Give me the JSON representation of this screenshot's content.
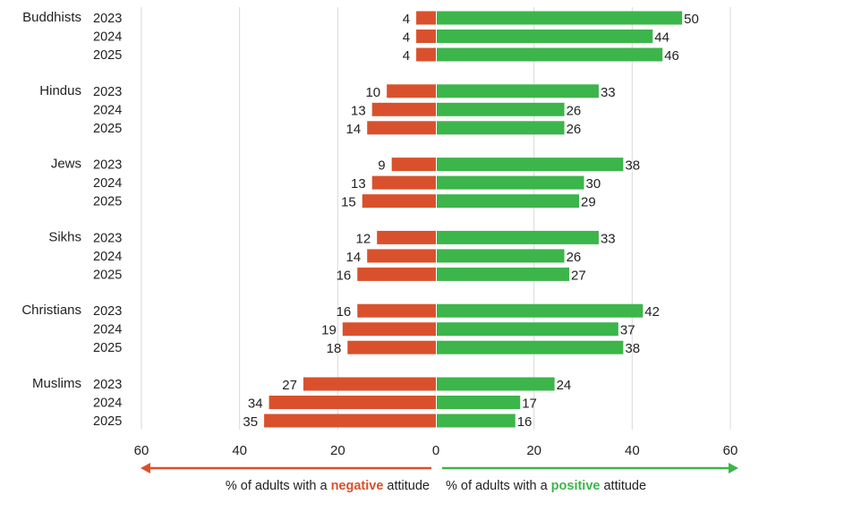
{
  "chart_data": {
    "type": "bar",
    "orientation": "horizontal-diverging",
    "groups": [
      "Buddhists",
      "Hindus",
      "Jews",
      "Sikhs",
      "Christians",
      "Muslims"
    ],
    "years": [
      "2023",
      "2024",
      "2025"
    ],
    "series": [
      {
        "name": "negative",
        "color": "#d9512c",
        "values": [
          [
            4,
            4,
            4
          ],
          [
            10,
            13,
            14
          ],
          [
            9,
            13,
            15
          ],
          [
            12,
            14,
            16
          ],
          [
            16,
            19,
            18
          ],
          [
            27,
            34,
            35
          ]
        ]
      },
      {
        "name": "positive",
        "color": "#3cb54a",
        "values": [
          [
            50,
            44,
            46
          ],
          [
            33,
            26,
            26
          ],
          [
            38,
            30,
            29
          ],
          [
            33,
            26,
            27
          ],
          [
            42,
            37,
            38
          ],
          [
            24,
            17,
            16
          ]
        ]
      }
    ],
    "xlim": [
      -60,
      60
    ],
    "xticks": [
      "60",
      "40",
      "20",
      "0",
      "20",
      "40",
      "60"
    ],
    "grid": true,
    "neg_label": {
      "prefix": "% of adults with a ",
      "highlight": "negative",
      "suffix": " attitude"
    },
    "pos_label": {
      "prefix": "% of adults with a ",
      "highlight": "positive",
      "suffix": " attitude"
    }
  }
}
